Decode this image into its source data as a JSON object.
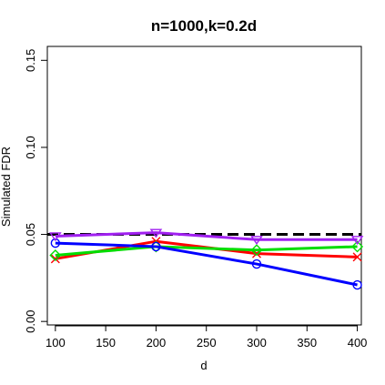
{
  "chart_data": {
    "type": "line",
    "title": "n=1000,k=0.2d",
    "xlabel": "d",
    "ylabel": "Simulated FDR",
    "x": [
      100,
      200,
      300,
      400
    ],
    "xlim": [
      92,
      404
    ],
    "ylim": [
      -0.002,
      0.158
    ],
    "xticks": [
      100,
      150,
      200,
      250,
      300,
      350,
      400
    ],
    "yticks": [
      "0.00",
      "0.05",
      "0.10",
      "0.15"
    ],
    "reference_line": {
      "y": 0.05,
      "style": "dashed",
      "color": "#000000"
    },
    "grid": false,
    "legend": "none",
    "series": [
      {
        "color": "#ff0000",
        "marker": "x",
        "values": [
          0.036,
          0.046,
          0.039,
          0.037
        ]
      },
      {
        "color": "#00dd00",
        "marker": "diamond",
        "values": [
          0.038,
          0.043,
          0.041,
          0.043
        ]
      },
      {
        "color": "#0000ff",
        "marker": "circle",
        "values": [
          0.045,
          0.043,
          0.033,
          0.021
        ]
      },
      {
        "color": "#a020f0",
        "marker": "triangle-down",
        "values": [
          0.049,
          0.051,
          0.047,
          0.047
        ]
      }
    ]
  }
}
